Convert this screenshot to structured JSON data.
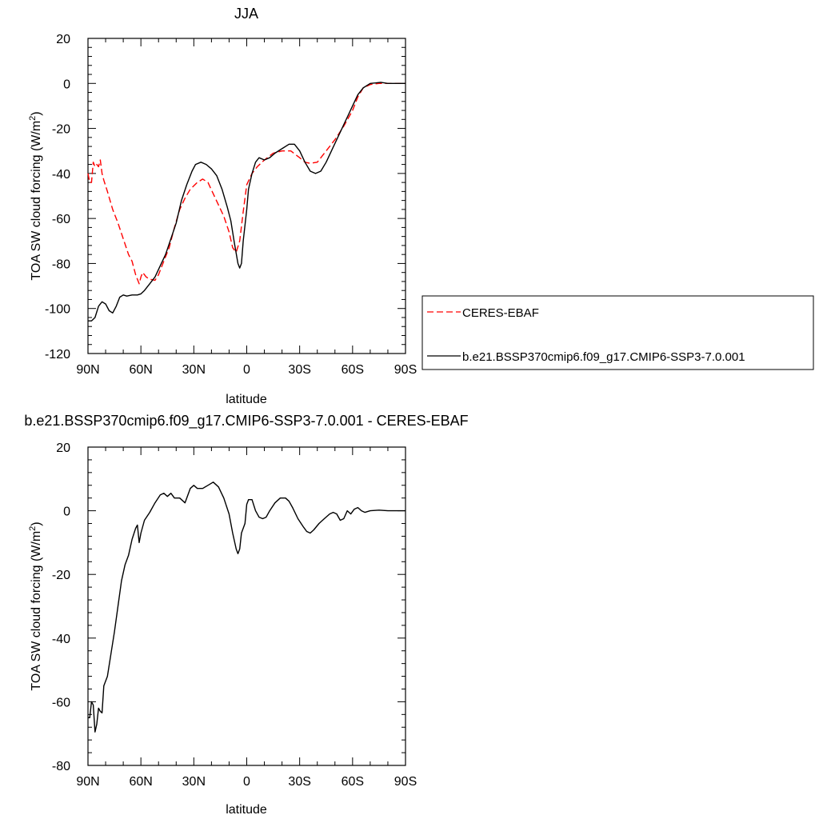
{
  "chart_data": [
    {
      "type": "line",
      "title": "JJA",
      "xlabel": "latitude",
      "ylabel": "TOA SW cloud forcing (W/m",
      "ylabel_sup": "2",
      "ylabel_close": ")",
      "xlim": [
        90,
        -90
      ],
      "ylim": [
        -120,
        20
      ],
      "x_ticks": [
        {
          "value": 90,
          "label": "90N"
        },
        {
          "value": 60,
          "label": "60N"
        },
        {
          "value": 30,
          "label": "30N"
        },
        {
          "value": 0,
          "label": "0"
        },
        {
          "value": -30,
          "label": "30S"
        },
        {
          "value": -60,
          "label": "60S"
        },
        {
          "value": -90,
          "label": "90S"
        }
      ],
      "y_ticks": [
        {
          "value": 20,
          "label": "20"
        },
        {
          "value": 0,
          "label": "0"
        },
        {
          "value": -20,
          "label": "-20"
        },
        {
          "value": -40,
          "label": "-40"
        },
        {
          "value": -60,
          "label": "-60"
        },
        {
          "value": -80,
          "label": "-80"
        },
        {
          "value": -100,
          "label": "-100"
        },
        {
          "value": -120,
          "label": "-120"
        }
      ],
      "legend_position": "right",
      "series": [
        {
          "name": "CERES-EBAF",
          "color": "#ff0000",
          "dash": "dashed",
          "points": [
            [
              90,
              -40
            ],
            [
              89,
              -44
            ],
            [
              88,
              -44
            ],
            [
              87,
              -35
            ],
            [
              86,
              -37
            ],
            [
              85,
              -36
            ],
            [
              84,
              -37
            ],
            [
              83,
              -34
            ],
            [
              82,
              -40
            ],
            [
              81,
              -43
            ],
            [
              79,
              -48
            ],
            [
              76,
              -56
            ],
            [
              73,
              -62
            ],
            [
              70,
              -69
            ],
            [
              67,
              -76
            ],
            [
              65,
              -79
            ],
            [
              63,
              -85
            ],
            [
              61,
              -89
            ],
            [
              60,
              -86
            ],
            [
              59,
              -84
            ],
            [
              57,
              -86
            ],
            [
              55,
              -87
            ],
            [
              52,
              -87.5
            ],
            [
              50,
              -85
            ],
            [
              47,
              -79
            ],
            [
              44,
              -73
            ],
            [
              41,
              -64
            ],
            [
              38,
              -56
            ],
            [
              35,
              -51
            ],
            [
              32,
              -47
            ],
            [
              28,
              -44
            ],
            [
              25,
              -42.5
            ],
            [
              22,
              -44
            ],
            [
              19,
              -49
            ],
            [
              16,
              -54
            ],
            [
              13,
              -59
            ],
            [
              10,
              -66
            ],
            [
              8,
              -73
            ],
            [
              6,
              -75
            ],
            [
              4,
              -70
            ],
            [
              2,
              -57
            ],
            [
              0,
              -45
            ],
            [
              -3,
              -40
            ],
            [
              -6,
              -37
            ],
            [
              -10,
              -34
            ],
            [
              -15,
              -31
            ],
            [
              -20,
              -30
            ],
            [
              -25,
              -30
            ],
            [
              -30,
              -33
            ],
            [
              -33,
              -35
            ],
            [
              -36,
              -35.5
            ],
            [
              -40,
              -35
            ],
            [
              -45,
              -30
            ],
            [
              -50,
              -25
            ],
            [
              -55,
              -19
            ],
            [
              -60,
              -12
            ],
            [
              -63,
              -6
            ],
            [
              -66,
              -2
            ],
            [
              -70,
              -0.5
            ],
            [
              -75,
              0
            ],
            [
              -80,
              0
            ],
            [
              -85,
              0
            ],
            [
              -90,
              0
            ]
          ]
        },
        {
          "name": "b.e21.BSSP370cmip6.f09_g17.CMIP6-SSP3-7.0.001",
          "color": "#000000",
          "dash": "solid",
          "points": [
            [
              90,
              -105.5
            ],
            [
              88,
              -105.5
            ],
            [
              86,
              -104
            ],
            [
              84,
              -99
            ],
            [
              82,
              -97
            ],
            [
              80,
              -98
            ],
            [
              78,
              -101
            ],
            [
              76,
              -102
            ],
            [
              74,
              -99
            ],
            [
              72,
              -95
            ],
            [
              70,
              -94
            ],
            [
              68,
              -94.5
            ],
            [
              65,
              -94
            ],
            [
              62,
              -94
            ],
            [
              60,
              -93.5
            ],
            [
              58,
              -92
            ],
            [
              55,
              -89
            ],
            [
              52,
              -86
            ],
            [
              49,
              -81
            ],
            [
              46,
              -76
            ],
            [
              43,
              -69
            ],
            [
              40,
              -62
            ],
            [
              37,
              -52
            ],
            [
              34,
              -45
            ],
            [
              31,
              -39
            ],
            [
              29,
              -36
            ],
            [
              26,
              -35
            ],
            [
              23,
              -36
            ],
            [
              20,
              -38
            ],
            [
              17,
              -41
            ],
            [
              14,
              -47
            ],
            [
              11,
              -55
            ],
            [
              9,
              -61
            ],
            [
              7,
              -71
            ],
            [
              5,
              -80
            ],
            [
              4,
              -82
            ],
            [
              3,
              -80
            ],
            [
              2,
              -70
            ],
            [
              0,
              -56
            ],
            [
              -1,
              -47
            ],
            [
              -3,
              -40
            ],
            [
              -5,
              -35
            ],
            [
              -7,
              -33
            ],
            [
              -10,
              -34
            ],
            [
              -13,
              -33
            ],
            [
              -16,
              -31
            ],
            [
              -20,
              -29
            ],
            [
              -24,
              -27
            ],
            [
              -27,
              -27
            ],
            [
              -30,
              -30
            ],
            [
              -33,
              -35
            ],
            [
              -36,
              -39
            ],
            [
              -39,
              -40
            ],
            [
              -42,
              -39
            ],
            [
              -45,
              -35
            ],
            [
              -48,
              -30
            ],
            [
              -51,
              -25
            ],
            [
              -54,
              -20
            ],
            [
              -57,
              -15
            ],
            [
              -60,
              -10
            ],
            [
              -63,
              -5
            ],
            [
              -66,
              -2
            ],
            [
              -70,
              0
            ],
            [
              -73,
              0.2
            ],
            [
              -76,
              0.5
            ],
            [
              -80,
              0
            ],
            [
              -85,
              0
            ],
            [
              -90,
              0
            ]
          ]
        }
      ]
    },
    {
      "type": "line",
      "title": "b.e21.BSSP370cmip6.f09_g17.CMIP6-SSP3-7.0.001 - CERES-EBAF",
      "xlabel": "latitude",
      "ylabel": "TOA SW cloud forcing (W/m",
      "ylabel_sup": "2",
      "ylabel_close": ")",
      "xlim": [
        90,
        -90
      ],
      "ylim": [
        -80,
        20
      ],
      "x_ticks": [
        {
          "value": 90,
          "label": "90N"
        },
        {
          "value": 60,
          "label": "60N"
        },
        {
          "value": 30,
          "label": "30N"
        },
        {
          "value": 0,
          "label": "0"
        },
        {
          "value": -30,
          "label": "30S"
        },
        {
          "value": -60,
          "label": "60S"
        },
        {
          "value": -90,
          "label": "90S"
        }
      ],
      "y_ticks": [
        {
          "value": 20,
          "label": "20"
        },
        {
          "value": 0,
          "label": "0"
        },
        {
          "value": -20,
          "label": "-20"
        },
        {
          "value": -40,
          "label": "-40"
        },
        {
          "value": -60,
          "label": "-60"
        },
        {
          "value": -80,
          "label": "-80"
        }
      ],
      "series": [
        {
          "color": "#000000",
          "dash": "solid",
          "points": [
            [
              90,
              -65
            ],
            [
              89,
              -65
            ],
            [
              88,
              -60
            ],
            [
              87,
              -61
            ],
            [
              86,
              -69.5
            ],
            [
              85,
              -67
            ],
            [
              84,
              -62
            ],
            [
              83,
              -63
            ],
            [
              82,
              -63.5
            ],
            [
              81,
              -55
            ],
            [
              79,
              -52
            ],
            [
              77,
              -45
            ],
            [
              75,
              -38
            ],
            [
              73,
              -30
            ],
            [
              71,
              -22
            ],
            [
              69,
              -17
            ],
            [
              67,
              -14
            ],
            [
              65,
              -9
            ],
            [
              63,
              -5.5
            ],
            [
              62,
              -4.5
            ],
            [
              61,
              -10
            ],
            [
              60,
              -7
            ],
            [
              58,
              -3
            ],
            [
              55,
              -0.5
            ],
            [
              52,
              2.5
            ],
            [
              49,
              5
            ],
            [
              47,
              5.5
            ],
            [
              45,
              4.5
            ],
            [
              43,
              5.5
            ],
            [
              41,
              4
            ],
            [
              38,
              4
            ],
            [
              35,
              2.5
            ],
            [
              32,
              7
            ],
            [
              30,
              8
            ],
            [
              28,
              7
            ],
            [
              25,
              7
            ],
            [
              22,
              8
            ],
            [
              19,
              9
            ],
            [
              16,
              7.5
            ],
            [
              13,
              4
            ],
            [
              10,
              -1
            ],
            [
              8,
              -7
            ],
            [
              6,
              -12
            ],
            [
              5,
              -13.5
            ],
            [
              4,
              -12
            ],
            [
              3,
              -7
            ],
            [
              1,
              -4
            ],
            [
              0,
              2
            ],
            [
              -1,
              3.5
            ],
            [
              -3,
              3.5
            ],
            [
              -5,
              0
            ],
            [
              -7,
              -2
            ],
            [
              -9,
              -2.5
            ],
            [
              -11,
              -2
            ],
            [
              -13,
              0
            ],
            [
              -16,
              2.5
            ],
            [
              -19,
              4
            ],
            [
              -22,
              4
            ],
            [
              -24,
              3
            ],
            [
              -26,
              1
            ],
            [
              -29,
              -2.5
            ],
            [
              -32,
              -5
            ],
            [
              -34,
              -6.5
            ],
            [
              -36,
              -7
            ],
            [
              -38,
              -6
            ],
            [
              -41,
              -4
            ],
            [
              -44,
              -2.5
            ],
            [
              -47,
              -1
            ],
            [
              -49,
              -0.5
            ],
            [
              -51,
              -1
            ],
            [
              -53,
              -3
            ],
            [
              -55,
              -2.5
            ],
            [
              -57,
              0
            ],
            [
              -59,
              -1
            ],
            [
              -61,
              0.5
            ],
            [
              -63,
              1
            ],
            [
              -65,
              0
            ],
            [
              -67,
              -0.5
            ],
            [
              -70,
              0
            ],
            [
              -75,
              0.2
            ],
            [
              -80,
              0
            ],
            [
              -85,
              0
            ],
            [
              -90,
              0
            ]
          ]
        }
      ]
    }
  ]
}
